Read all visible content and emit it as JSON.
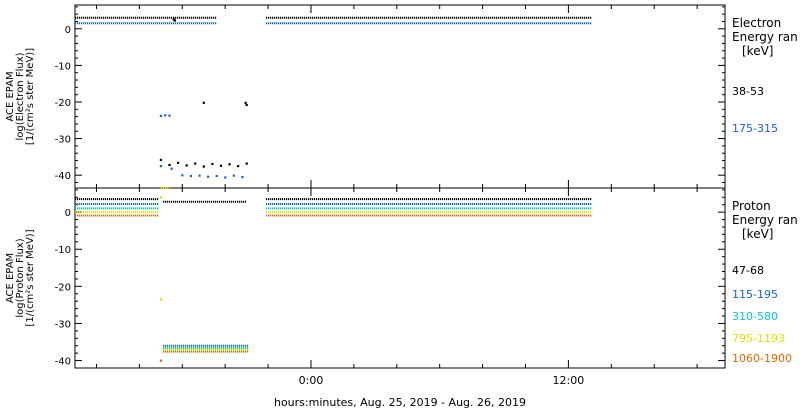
{
  "xlabel": "hours:minutes, Aug. 25, 2019 - Aug. 26, 2019",
  "x_ticks": [
    {
      "hour": 0,
      "label": "0:00"
    },
    {
      "hour": 12,
      "label": "12:00"
    }
  ],
  "chart_data": [
    {
      "type": "scatter",
      "ylabel": [
        "ACE EPAM",
        "log(Electron Flux)",
        "[1/(cm²s ster MeV)]"
      ],
      "legend_title": [
        "Electron",
        "Energy ran",
        "[keV]"
      ],
      "xlim": [
        -11,
        19.3
      ],
      "ylim": [
        -43.5,
        6.5
      ],
      "y_ticks": [
        0,
        -10,
        -20,
        -30,
        -40
      ],
      "x_minor_ticks": [
        -10,
        -8,
        -6,
        -4,
        -2,
        2,
        4,
        6,
        8,
        10,
        14,
        16,
        18
      ],
      "series": [
        {
          "name": "38-53",
          "color": "#000000",
          "segments": [
            {
              "x": [
                -11,
                -4.4
              ],
              "y": 3.0
            },
            {
              "x": [
                -2.1,
                13.1
              ],
              "y": 3.0
            }
          ],
          "points": [
            {
              "x": -6.4,
              "y": 2.6
            },
            {
              "x": -6.35,
              "y": 2.3
            },
            {
              "x": -5.0,
              "y": -20.2
            },
            {
              "x": -3.0,
              "y": -20.8
            },
            {
              "x": -3.05,
              "y": -20.2
            },
            {
              "x": -7.0,
              "y": -35.8
            },
            {
              "x": -6.6,
              "y": -37.2
            },
            {
              "x": -6.2,
              "y": -36.6
            },
            {
              "x": -5.8,
              "y": -37.3
            },
            {
              "x": -5.4,
              "y": -36.8
            },
            {
              "x": -5.0,
              "y": -37.6
            },
            {
              "x": -4.6,
              "y": -36.9
            },
            {
              "x": -4.2,
              "y": -37.4
            },
            {
              "x": -3.8,
              "y": -37.0
            },
            {
              "x": -3.4,
              "y": -37.5
            },
            {
              "x": -3.0,
              "y": -36.8
            }
          ]
        },
        {
          "name": "175-315",
          "color": "#1a5fd6",
          "segments": [
            {
              "x": [
                -11,
                -4.4
              ],
              "y": 1.5
            },
            {
              "x": [
                -2.1,
                13.1
              ],
              "y": 1.5
            }
          ],
          "points": [
            {
              "x": -7.0,
              "y": -23.8
            },
            {
              "x": -6.8,
              "y": -23.6
            },
            {
              "x": -6.6,
              "y": -23.7
            },
            {
              "x": -7.0,
              "y": -37.5
            },
            {
              "x": -6.5,
              "y": -38.2
            },
            {
              "x": -6.0,
              "y": -40.0
            },
            {
              "x": -5.6,
              "y": -40.2
            },
            {
              "x": -5.2,
              "y": -40.1
            },
            {
              "x": -4.8,
              "y": -40.4
            },
            {
              "x": -4.4,
              "y": -40.2
            },
            {
              "x": -4.0,
              "y": -40.6
            },
            {
              "x": -3.6,
              "y": -40.1
            },
            {
              "x": -3.2,
              "y": -40.5
            }
          ]
        }
      ]
    },
    {
      "type": "scatter",
      "ylabel": [
        "ACE EPAM",
        "log(Proton Flux)",
        "[1/(cm²s ster MeV)]"
      ],
      "legend_title": [
        "Proton",
        "Energy ran",
        "[keV]"
      ],
      "xlim": [
        -11,
        19.3
      ],
      "ylim": [
        -42,
        6.5
      ],
      "y_ticks": [
        0,
        -10,
        -20,
        -30,
        -40
      ],
      "x_minor_ticks": [
        -10,
        -8,
        -6,
        -4,
        -2,
        2,
        4,
        6,
        8,
        10,
        14,
        16,
        18
      ],
      "series": [
        {
          "name": "47-68",
          "color": "#000000",
          "segments": [
            {
              "x": [
                -11,
                -7.1
              ],
              "y": 3.5
            },
            {
              "x": [
                -6.9,
                -3.0
              ],
              "y": 2.8
            },
            {
              "x": [
                -2.1,
                13.1
              ],
              "y": 3.5
            }
          ],
          "points": []
        },
        {
          "name": "115-195",
          "color": "#1a5fd6",
          "segments": [
            {
              "x": [
                -11,
                -7.1
              ],
              "y": 2.2
            },
            {
              "x": [
                -6.9,
                -2.9
              ],
              "y": -36.0
            },
            {
              "x": [
                -2.1,
                13.1
              ],
              "y": 2.2
            }
          ],
          "points": []
        },
        {
          "name": "310-580",
          "color": "#00c8d2",
          "segments": [
            {
              "x": [
                -11,
                -7.1
              ],
              "y": 1.0
            },
            {
              "x": [
                -6.9,
                -2.9
              ],
              "y": -36.6
            },
            {
              "x": [
                -2.1,
                13.1
              ],
              "y": 1.0
            }
          ],
          "points": []
        },
        {
          "name": "795-1193",
          "color": "#e0e000",
          "segments": [
            {
              "x": [
                -11,
                -7.1
              ],
              "y": 0.0
            },
            {
              "x": [
                -7.0,
                -6.6
              ],
              "y": 6.5
            },
            {
              "x": [
                -6.9,
                -2.9
              ],
              "y": -37.1
            },
            {
              "x": [
                -2.1,
                13.1
              ],
              "y": 0.0
            }
          ],
          "points": [
            {
              "x": -7.0,
              "y": 4.0
            },
            {
              "x": -7.0,
              "y": -23.5
            }
          ]
        },
        {
          "name": "1060-1900",
          "color": "#e06a00",
          "segments": [
            {
              "x": [
                -11,
                -7.1
              ],
              "y": -0.9
            },
            {
              "x": [
                -6.9,
                -2.9
              ],
              "y": -37.6
            },
            {
              "x": [
                -2.1,
                13.1
              ],
              "y": -0.9
            }
          ],
          "points": [
            {
              "x": -7.0,
              "y": -40.0
            }
          ]
        }
      ]
    }
  ]
}
